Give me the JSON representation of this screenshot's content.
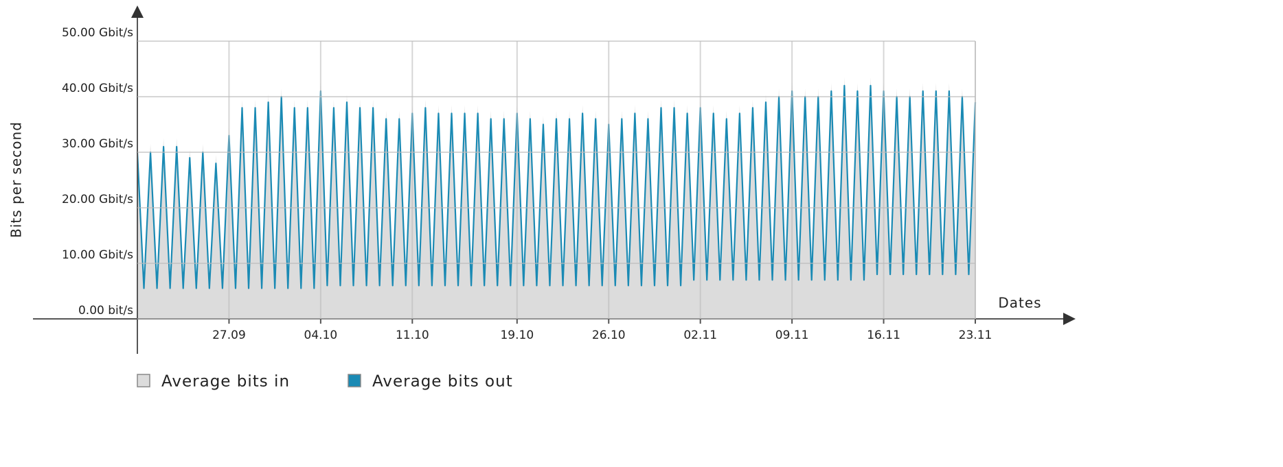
{
  "chart_data": {
    "type": "line",
    "y_label": "Bits per second",
    "x_label": "Dates",
    "categories": [
      null,
      null,
      null,
      null,
      null,
      null,
      null,
      null,
      null,
      null,
      null,
      null,
      null,
      null,
      "27.09",
      null,
      null,
      null,
      null,
      null,
      null,
      null,
      null,
      null,
      null,
      null,
      null,
      null,
      "04.10",
      null,
      null,
      null,
      null,
      null,
      null,
      null,
      null,
      null,
      null,
      null,
      null,
      null,
      "11.10",
      null,
      null,
      null,
      null,
      null,
      null,
      null,
      null,
      null,
      null,
      null,
      null,
      null,
      null,
      null,
      "19.10",
      null,
      null,
      null,
      null,
      null,
      null,
      null,
      null,
      null,
      null,
      null,
      null,
      null,
      "26.10",
      null,
      null,
      null,
      null,
      null,
      null,
      null,
      null,
      null,
      null,
      null,
      null,
      null,
      "02.11",
      null,
      null,
      null,
      null,
      null,
      null,
      null,
      null,
      null,
      null,
      null,
      null,
      null,
      "09.11",
      null,
      null,
      null,
      null,
      null,
      null,
      null,
      null,
      null,
      null,
      null,
      null,
      null,
      "16.11",
      null,
      null,
      null,
      null,
      null,
      null,
      null,
      null,
      null,
      null,
      null,
      null,
      null,
      "23.11"
    ],
    "series": [
      {
        "name": "Average bits in",
        "color": "#dcdcdc",
        "style": "area",
        "values": [
          31.5,
          5.5,
          31.5,
          5.5,
          32.5,
          5.5,
          32.5,
          5.5,
          30.5,
          5.5,
          31.5,
          5.5,
          29.5,
          5.5,
          34.5,
          5.5,
          39.5,
          5.5,
          39.5,
          5.5,
          40.5,
          5.5,
          41.5,
          5.5,
          39.5,
          5.5,
          39.5,
          5.5,
          42.5,
          6,
          39.5,
          6,
          40.5,
          6,
          39.5,
          6,
          39.5,
          6,
          37.5,
          6,
          37.5,
          6,
          38.5,
          6,
          39.5,
          6,
          38.5,
          6,
          38.5,
          6,
          38.5,
          6,
          38.5,
          6,
          37.5,
          6,
          37.5,
          6,
          38.5,
          6,
          37.5,
          6,
          36.5,
          6,
          37.5,
          6,
          37.5,
          6,
          38.5,
          6,
          37.5,
          6,
          36.5,
          6,
          37.5,
          6,
          38.5,
          6,
          37.5,
          6,
          39.5,
          6,
          39.5,
          6,
          38.5,
          7,
          39.5,
          7,
          38.5,
          7,
          37.5,
          7,
          38.5,
          7,
          39.5,
          7,
          40.5,
          7,
          41.5,
          7,
          42.5,
          7,
          41.5,
          7,
          41.5,
          7,
          42.5,
          7,
          43.5,
          7,
          42.5,
          7,
          43.5,
          8,
          42.5,
          8,
          41.5,
          8,
          41.5,
          8,
          42.5,
          8,
          42.5,
          8,
          42.5,
          8,
          41.5,
          8,
          40.5
        ]
      },
      {
        "name": "Average bits out",
        "color": "#1a8ab4",
        "style": "line",
        "values": [
          30,
          5.5,
          30,
          5.5,
          31,
          5.5,
          31,
          5.5,
          29,
          5.5,
          30,
          5.5,
          28,
          5.5,
          33,
          5.5,
          38,
          5.5,
          38,
          5.5,
          39,
          5.5,
          40,
          5.5,
          38,
          5.5,
          38,
          5.5,
          41,
          6,
          38,
          6,
          39,
          6,
          38,
          6,
          38,
          6,
          36,
          6,
          36,
          6,
          37,
          6,
          38,
          6,
          37,
          6,
          37,
          6,
          37,
          6,
          37,
          6,
          36,
          6,
          36,
          6,
          37,
          6,
          36,
          6,
          35,
          6,
          36,
          6,
          36,
          6,
          37,
          6,
          36,
          6,
          35,
          6,
          36,
          6,
          37,
          6,
          36,
          6,
          38,
          6,
          38,
          6,
          37,
          7,
          38,
          7,
          37,
          7,
          36,
          7,
          37,
          7,
          38,
          7,
          39,
          7,
          40,
          7,
          41,
          7,
          40,
          7,
          40,
          7,
          41,
          7,
          42,
          7,
          41,
          7,
          42,
          8,
          41,
          8,
          40,
          8,
          40,
          8,
          41,
          8,
          41,
          8,
          41,
          8,
          40,
          8,
          39
        ]
      }
    ],
    "ylim": [
      0,
      50
    ],
    "yticks": [
      {
        "value": 0,
        "label": "0.00 bit/s"
      },
      {
        "value": 10,
        "label": "10.00 Gbit/s"
      },
      {
        "value": 20,
        "label": "20.00 Gbit/s"
      },
      {
        "value": 30,
        "label": "30.00 Gbit/s"
      },
      {
        "value": 40,
        "label": "40.00 Gbit/s"
      },
      {
        "value": 50,
        "label": "50.00 Gbit/s"
      }
    ],
    "grid": true
  }
}
